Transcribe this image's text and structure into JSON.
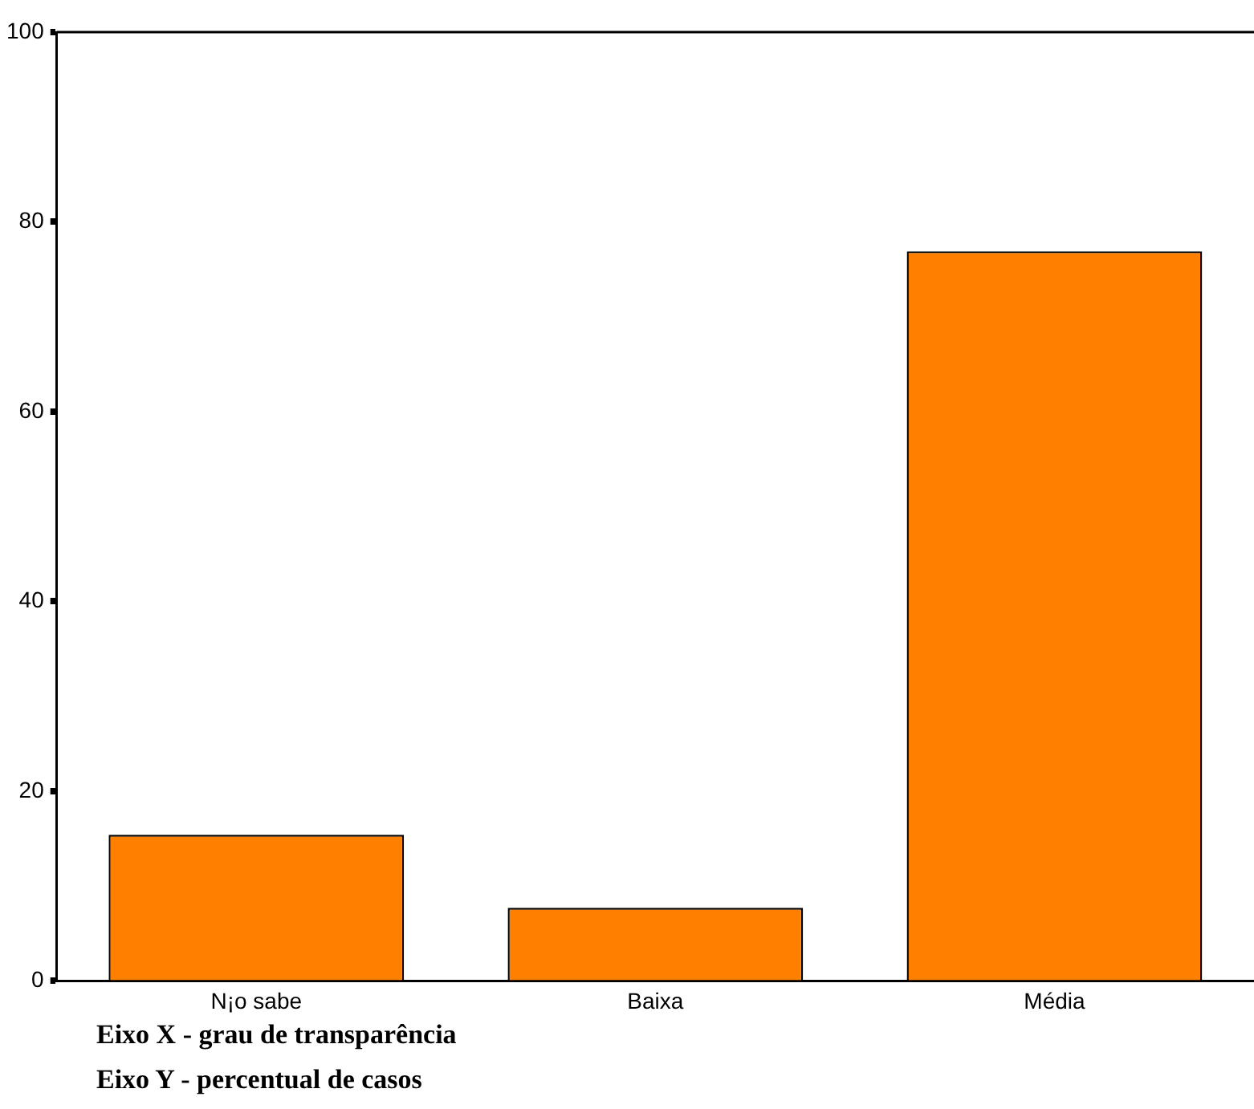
{
  "chart_data": {
    "type": "bar",
    "categories": [
      "N¡o sabe",
      "Baixa",
      "Média"
    ],
    "values": [
      15.4,
      7.7,
      76.9
    ],
    "color": "#ff8000",
    "ylim": [
      0,
      100
    ],
    "yticks": [
      0,
      20,
      40,
      60,
      80,
      100
    ],
    "grid": false,
    "legend": false,
    "annotations": [
      "Eixo X - grau de transparência",
      "Eixo Y - percentual de casos"
    ]
  }
}
